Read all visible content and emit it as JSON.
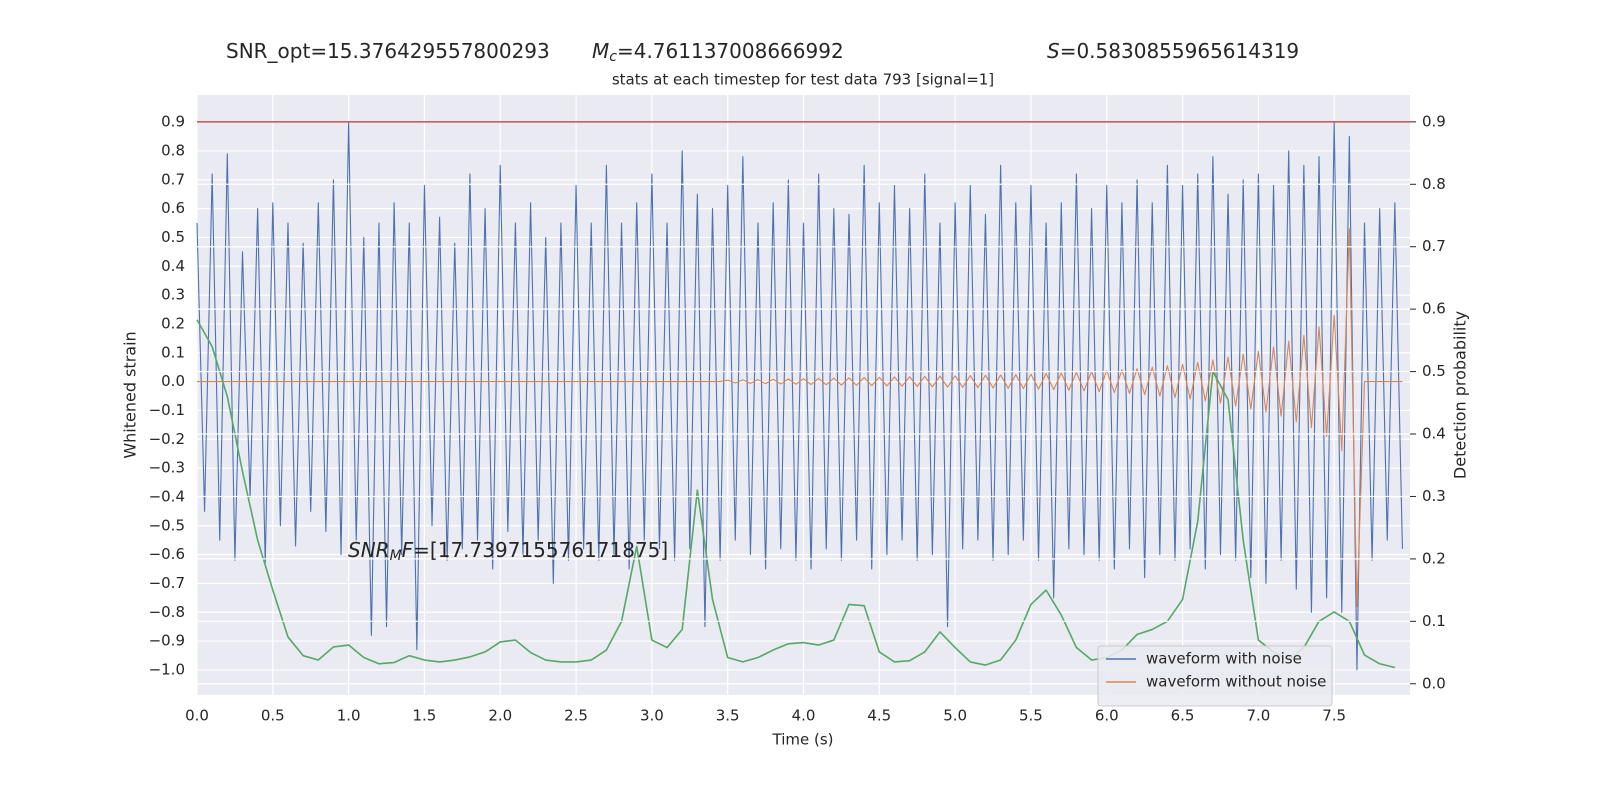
{
  "chart_data": {
    "type": "line",
    "title": "stats at each timestep for test data 793 [signal=1]",
    "header": [
      [
        {
          "text": "SNR_opt=15.376429557800293"
        }
      ],
      [
        {
          "text": "M",
          "style": "italic"
        },
        {
          "text": "c",
          "style": "sub"
        },
        {
          "text": "=4.761137008666992"
        }
      ],
      [
        {
          "text": "S",
          "style": "italic"
        },
        {
          "text": "=0.5830855965614319"
        }
      ]
    ],
    "annotation": [
      {
        "text": "SNR",
        "style": "italic"
      },
      {
        "text": "M",
        "style": "sub"
      },
      {
        "text": "F",
        "style": "italic"
      },
      {
        "text": "=[17.739715576171875]"
      }
    ],
    "x_label": "Time (s)",
    "y_label": "Whitened strain",
    "y2_label": "Detection probability",
    "xlim": [
      0,
      8
    ],
    "ylim": [
      -1.087,
      0.994
    ],
    "y2lim": [
      -0.018,
      0.943
    ],
    "xticks": [
      {
        "value": 0,
        "label": "0.0"
      },
      0.5,
      {
        "value": 1,
        "label": "1.0"
      },
      1.5,
      {
        "value": 2,
        "label": "2.0"
      },
      2.5,
      {
        "value": 3,
        "label": "3.0"
      },
      3.5,
      {
        "value": 4,
        "label": "4.0"
      },
      4.5,
      {
        "value": 5,
        "label": "5.0"
      },
      5.5,
      {
        "value": 6,
        "label": "6.0"
      },
      6.5,
      {
        "value": 7,
        "label": "7.0"
      },
      7.5
    ],
    "yticks": [
      {
        "value": -1,
        "label": "−1.0"
      },
      {
        "value": -0.9,
        "label": "−0.9"
      },
      {
        "value": -0.8,
        "label": "−0.8"
      },
      {
        "value": -0.7,
        "label": "−0.7"
      },
      {
        "value": -0.6,
        "label": "−0.6"
      },
      {
        "value": -0.5,
        "label": "−0.5"
      },
      {
        "value": -0.4,
        "label": "−0.4"
      },
      {
        "value": -0.3,
        "label": "−0.3"
      },
      {
        "value": -0.2,
        "label": "−0.2"
      },
      {
        "value": -0.1,
        "label": "−0.1"
      },
      {
        "value": 0,
        "label": "0.0"
      },
      0.1,
      0.2,
      0.3,
      0.4,
      0.5,
      0.6,
      0.7,
      0.8,
      0.9
    ],
    "y2ticks": [
      {
        "value": 0,
        "label": "0.0"
      },
      0.1,
      0.2,
      0.3,
      0.4,
      0.5,
      0.6,
      0.7,
      0.8,
      0.9
    ],
    "grid": true,
    "legend": "lower right",
    "threshold": {
      "value": 0.9,
      "axis": "y2",
      "color": "#c44e52"
    },
    "x": [
      0,
      0.05,
      0.1,
      0.15,
      0.2,
      0.25,
      0.3,
      0.35,
      0.4,
      0.45,
      0.5,
      0.55,
      0.6,
      0.65,
      0.7,
      0.75,
      0.8,
      0.85,
      0.9,
      0.95,
      1,
      1.05,
      1.1,
      1.15,
      1.2,
      1.25,
      1.3,
      1.35,
      1.4,
      1.45,
      1.5,
      1.55,
      1.6,
      1.65,
      1.7,
      1.75,
      1.8,
      1.85,
      1.9,
      1.95,
      2,
      2.05,
      2.1,
      2.15,
      2.2,
      2.25,
      2.3,
      2.35,
      2.4,
      2.45,
      2.5,
      2.55,
      2.6,
      2.65,
      2.7,
      2.75,
      2.8,
      2.85,
      2.9,
      2.95,
      3,
      3.05,
      3.1,
      3.15,
      3.2,
      3.25,
      3.3,
      3.35,
      3.4,
      3.45,
      3.5,
      3.55,
      3.6,
      3.65,
      3.7,
      3.75,
      3.8,
      3.85,
      3.9,
      3.95,
      4,
      4.05,
      4.1,
      4.15,
      4.2,
      4.25,
      4.3,
      4.35,
      4.4,
      4.45,
      4.5,
      4.55,
      4.6,
      4.65,
      4.7,
      4.75,
      4.8,
      4.85,
      4.9,
      4.95,
      5,
      5.05,
      5.1,
      5.15,
      5.2,
      5.25,
      5.3,
      5.35,
      5.4,
      5.45,
      5.5,
      5.55,
      5.6,
      5.65,
      5.7,
      5.75,
      5.8,
      5.85,
      5.9,
      5.95,
      6,
      6.05,
      6.1,
      6.15,
      6.2,
      6.25,
      6.3,
      6.35,
      6.4,
      6.45,
      6.5,
      6.55,
      6.6,
      6.65,
      6.7,
      6.75,
      6.8,
      6.85,
      6.9,
      6.95,
      7,
      7.05,
      7.1,
      7.15,
      7.2,
      7.25,
      7.3,
      7.35,
      7.4,
      7.45,
      7.5,
      7.55,
      7.6,
      7.65,
      7.7,
      7.75,
      7.8,
      7.85,
      7.9,
      7.95
    ],
    "series": [
      {
        "name": "waveform with noise",
        "color": "#4c72b0",
        "axis": "y",
        "values": [
          0.55,
          -0.45,
          0.72,
          -0.55,
          0.79,
          -0.62,
          0.45,
          -0.4,
          0.6,
          -0.63,
          0.62,
          -0.5,
          0.55,
          -0.57,
          0.48,
          -0.45,
          0.62,
          -0.52,
          0.7,
          -0.6,
          0.9,
          -0.55,
          0.5,
          -0.88,
          0.55,
          -0.85,
          0.62,
          -0.6,
          0.55,
          -0.93,
          0.68,
          -0.5,
          0.57,
          -0.62,
          0.48,
          -0.58,
          0.72,
          -0.55,
          0.6,
          -0.65,
          0.75,
          -0.52,
          0.55,
          -0.6,
          0.62,
          -0.55,
          0.5,
          -0.7,
          0.55,
          -0.62,
          0.68,
          -0.58,
          0.55,
          -0.62,
          0.75,
          -0.6,
          0.55,
          -0.65,
          0.62,
          -0.55,
          0.72,
          -0.58,
          0.55,
          -0.62,
          0.8,
          -0.58,
          0.65,
          -0.85,
          0.6,
          -0.62,
          0.68,
          -0.55,
          0.78,
          -0.6,
          0.55,
          -0.65,
          0.62,
          -0.58,
          0.7,
          -0.62,
          0.55,
          -0.65,
          0.72,
          -0.58,
          0.6,
          -0.62,
          0.58,
          -0.55,
          0.75,
          -0.65,
          0.62,
          -0.6,
          0.68,
          -0.55,
          0.6,
          -0.62,
          0.72,
          -0.6,
          0.55,
          -0.85,
          0.62,
          -0.58,
          0.68,
          -0.55,
          0.58,
          -0.62,
          0.75,
          -0.6,
          0.62,
          -0.55,
          0.68,
          -0.62,
          0.55,
          -0.75,
          0.62,
          -0.58,
          0.72,
          -0.6,
          0.6,
          -0.62,
          0.68,
          -0.65,
          0.62,
          -0.58,
          0.7,
          -0.68,
          0.62,
          -0.6,
          0.75,
          -0.62,
          0.68,
          -0.58,
          0.72,
          -0.65,
          0.78,
          -0.6,
          0.65,
          -0.62,
          0.7,
          -0.68,
          0.72,
          -0.7,
          0.68,
          -0.62,
          0.8,
          -0.72,
          0.75,
          -0.8,
          0.78,
          -0.75,
          0.9,
          -0.8,
          0.85,
          -1,
          0.55,
          -0.62,
          0.6,
          -0.55,
          0.62,
          -0.58
        ]
      },
      {
        "name": "waveform without noise",
        "color": "#dd8452",
        "axis": "y",
        "values": [
          0,
          0,
          0,
          0,
          0,
          0,
          0,
          0,
          0,
          0,
          0,
          0,
          0,
          0,
          0,
          0,
          0,
          0,
          0,
          0,
          0,
          0,
          0,
          0,
          0,
          0,
          0,
          0,
          0,
          0,
          0,
          0,
          0,
          0,
          0,
          0,
          0,
          0,
          0,
          0,
          0,
          0,
          0,
          0,
          0,
          0,
          0,
          0,
          0,
          0,
          0,
          0,
          0,
          0,
          0,
          0,
          0,
          0,
          0,
          0,
          0,
          0,
          0,
          0,
          0,
          0,
          0,
          0,
          0,
          0,
          0.005,
          -0.005,
          0.006,
          -0.006,
          0.007,
          -0.007,
          0.008,
          -0.008,
          0.009,
          -0.009,
          0.01,
          -0.01,
          0.011,
          -0.011,
          0.012,
          -0.012,
          0.013,
          -0.013,
          0.014,
          -0.014,
          0.015,
          -0.015,
          0.016,
          -0.016,
          0.017,
          -0.017,
          0.018,
          -0.018,
          0.019,
          -0.019,
          0.02,
          -0.02,
          0.021,
          -0.021,
          0.022,
          -0.022,
          0.023,
          -0.023,
          0.024,
          -0.024,
          0.026,
          -0.026,
          0.028,
          -0.028,
          0.03,
          -0.03,
          0.032,
          -0.032,
          0.035,
          -0.035,
          0.038,
          -0.038,
          0.041,
          -0.041,
          0.045,
          -0.045,
          0.05,
          -0.05,
          0.055,
          -0.055,
          0.06,
          -0.06,
          0.067,
          -0.067,
          0.075,
          -0.075,
          0.085,
          -0.085,
          0.095,
          -0.095,
          0.105,
          -0.105,
          0.12,
          -0.12,
          0.14,
          -0.14,
          0.16,
          -0.16,
          0.19,
          -0.19,
          0.23,
          -0.24,
          0.53,
          -0.78,
          0,
          0,
          0,
          0,
          0,
          0
        ]
      },
      {
        "color": "#55a868",
        "axis": "y2",
        "x": [
          0,
          0.1,
          0.2,
          0.3,
          0.4,
          0.5,
          0.6,
          0.7,
          0.8,
          0.9,
          1,
          1.1,
          1.2,
          1.3,
          1.4,
          1.5,
          1.6,
          1.7,
          1.8,
          1.9,
          2,
          2.1,
          2.2,
          2.3,
          2.4,
          2.5,
          2.6,
          2.7,
          2.8,
          2.9,
          3,
          3.1,
          3.2,
          3.3,
          3.4,
          3.5,
          3.6,
          3.7,
          3.8,
          3.9,
          4,
          4.1,
          4.2,
          4.3,
          4.4,
          4.5,
          4.6,
          4.7,
          4.8,
          4.9,
          5,
          5.1,
          5.2,
          5.3,
          5.4,
          5.5,
          5.6,
          5.7,
          5.8,
          5.9,
          6,
          6.1,
          6.2,
          6.3,
          6.4,
          6.5,
          6.6,
          6.7,
          6.8,
          6.9,
          7,
          7.1,
          7.2,
          7.3,
          7.4,
          7.5,
          7.6,
          7.7,
          7.8,
          7.9
        ],
        "values": [
          0.583,
          0.54,
          0.46,
          0.34,
          0.23,
          0.15,
          0.075,
          0.045,
          0.038,
          0.059,
          0.062,
          0.042,
          0.032,
          0.034,
          0.045,
          0.038,
          0.035,
          0.038,
          0.043,
          0.051,
          0.067,
          0.07,
          0.05,
          0.038,
          0.035,
          0.035,
          0.038,
          0.054,
          0.1,
          0.22,
          0.07,
          0.058,
          0.087,
          0.31,
          0.135,
          0.042,
          0.035,
          0.042,
          0.054,
          0.064,
          0.066,
          0.062,
          0.07,
          0.127,
          0.125,
          0.051,
          0.035,
          0.037,
          0.051,
          0.083,
          0.058,
          0.035,
          0.03,
          0.038,
          0.07,
          0.127,
          0.15,
          0.11,
          0.058,
          0.038,
          0.042,
          0.054,
          0.079,
          0.087,
          0.1,
          0.135,
          0.26,
          0.5,
          0.455,
          0.23,
          0.07,
          0.051,
          0.038,
          0.058,
          0.1,
          0.115,
          0.1,
          0.046,
          0.032,
          0.026
        ]
      }
    ]
  }
}
